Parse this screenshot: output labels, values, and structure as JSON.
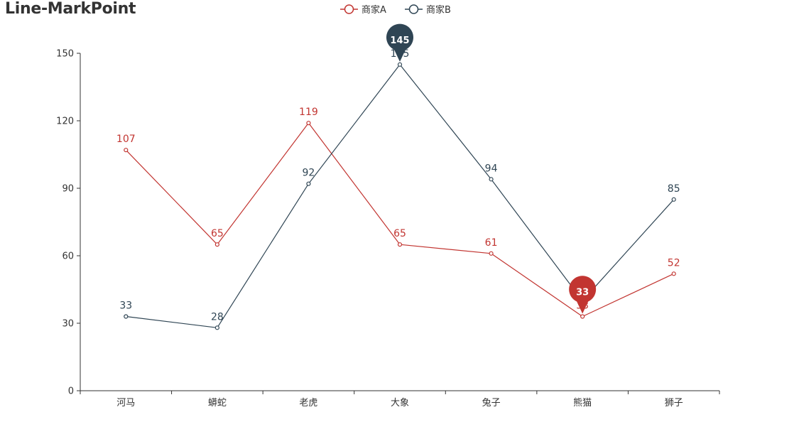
{
  "chart_data": {
    "type": "line",
    "title": "Line-MarkPoint",
    "categories": [
      "河马",
      "蟒蛇",
      "老虎",
      "大象",
      "兔子",
      "熊猫",
      "狮子"
    ],
    "ylim": [
      0,
      150
    ],
    "yticks": [
      0,
      30,
      60,
      90,
      120,
      150
    ],
    "grid": false,
    "legend_position": "top-center",
    "series": [
      {
        "name": "商家A",
        "color": "#c23531",
        "values": [
          107,
          65,
          119,
          65,
          61,
          33,
          52
        ],
        "mark_point": {
          "type": "min",
          "value": 33,
          "category": "熊猫"
        }
      },
      {
        "name": "商家B",
        "color": "#2f4554",
        "values": [
          33,
          28,
          92,
          145,
          94,
          40,
          85
        ],
        "hidden_labels": [
          5
        ],
        "mark_point": {
          "type": "max",
          "value": 145,
          "category": "大象"
        }
      }
    ]
  }
}
